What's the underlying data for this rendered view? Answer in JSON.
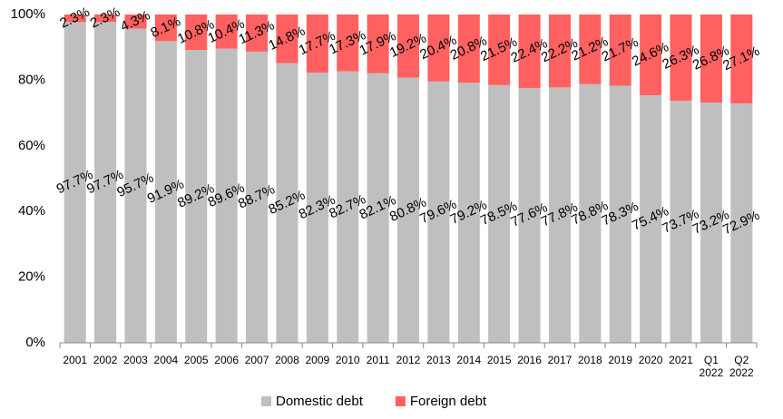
{
  "chart_data": {
    "type": "stacked_bar",
    "categories": [
      "2001",
      "2002",
      "2003",
      "2004",
      "2005",
      "2006",
      "2007",
      "2008",
      "2009",
      "2010",
      "2011",
      "2012",
      "2013",
      "2014",
      "2015",
      "2016",
      "2017",
      "2018",
      "2019",
      "2020",
      "2021",
      "Q1 2022",
      "Q2 2022"
    ],
    "series": [
      {
        "name": "Domestic debt",
        "color": "#bfbfbf",
        "values": [
          97.7,
          97.7,
          95.7,
          91.9,
          89.2,
          89.6,
          88.7,
          85.2,
          82.3,
          82.7,
          82.1,
          80.8,
          79.6,
          79.2,
          78.5,
          77.6,
          77.8,
          78.8,
          78.3,
          75.4,
          73.7,
          73.2,
          72.9
        ],
        "value_labels": [
          "97.7%",
          "97.7%",
          "95.7%",
          "91.9%",
          "89.2%",
          "89.6%",
          "88.7%",
          "85.2%",
          "82.3%",
          "82.7%",
          "82.1%",
          "80.8%",
          "79.6%",
          "79.2%",
          "78.5%",
          "77.6%",
          "77.8%",
          "78.8%",
          "78.3%",
          "75.4%",
          "73.7%",
          "73.2%",
          "72.9%"
        ]
      },
      {
        "name": "Foreign debt",
        "color": "#ff6161",
        "values": [
          2.3,
          2.3,
          4.3,
          8.1,
          10.8,
          10.4,
          11.3,
          14.8,
          17.7,
          17.3,
          17.9,
          19.2,
          20.4,
          20.8,
          21.5,
          22.4,
          22.2,
          21.2,
          21.7,
          24.6,
          26.3,
          26.8,
          27.1
        ],
        "value_labels": [
          "2.3%",
          "2.3%",
          "4.3%",
          "8.1%",
          "10.8%",
          "10.4%",
          "11.3%",
          "14.8%",
          "17.7%",
          "17.3%",
          "17.9%",
          "19.2%",
          "20.4%",
          "20.8%",
          "21.5%",
          "22.4%",
          "22.2%",
          "21.2%",
          "21.7%",
          "24.6%",
          "26.3%",
          "26.8%",
          "27.1%"
        ]
      }
    ],
    "ylim": [
      0,
      100
    ],
    "yticks": [
      {
        "value": 0,
        "label": "0%"
      },
      {
        "value": 20,
        "label": "20%"
      },
      {
        "value": 40,
        "label": "40%"
      },
      {
        "value": 60,
        "label": "60%"
      },
      {
        "value": 80,
        "label": "80%"
      },
      {
        "value": 100,
        "label": "100%"
      }
    ],
    "grid": false,
    "legend": "bottom"
  }
}
